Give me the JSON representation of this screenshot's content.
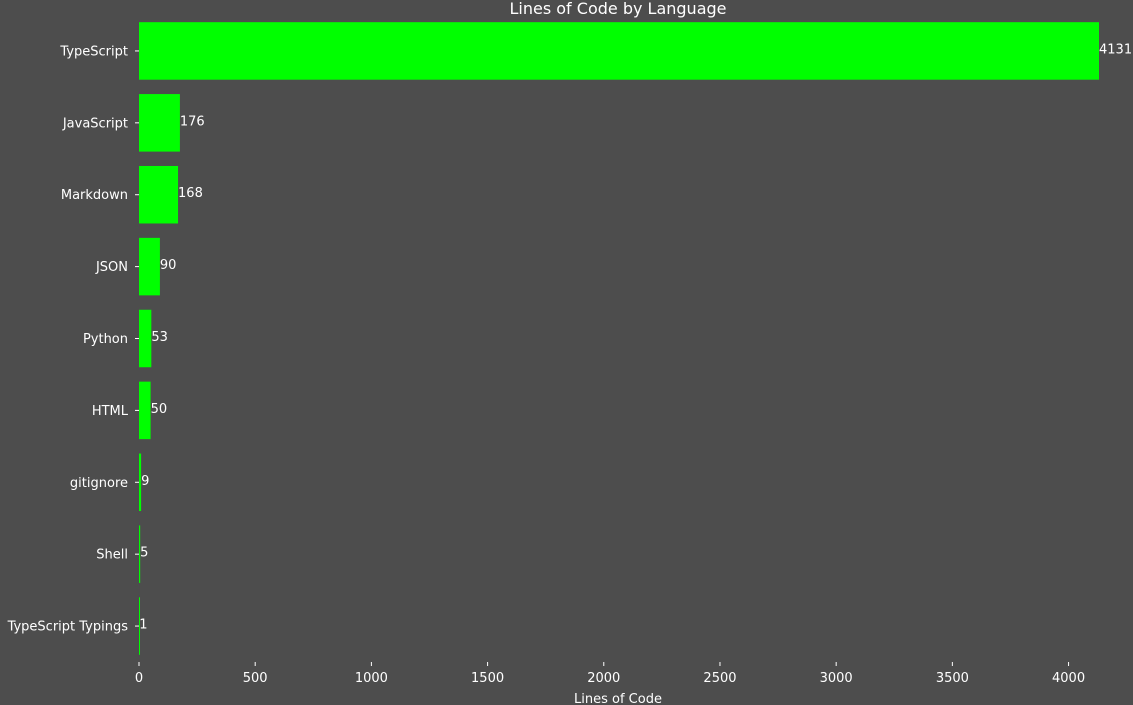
{
  "chart_data": {
    "type": "bar",
    "orientation": "horizontal",
    "title": "Lines of Code by Language",
    "xlabel": "Lines of Code",
    "ylabel": "",
    "categories": [
      "TypeScript",
      "JavaScript",
      "Markdown",
      "JSON",
      "Python",
      "HTML",
      "gitignore",
      "Shell",
      "TypeScript Typings"
    ],
    "values": [
      4131,
      176,
      168,
      90,
      53,
      50,
      9,
      5,
      1
    ],
    "data_labels": [
      "4131",
      "176",
      "168",
      "90",
      "53",
      "50",
      "9",
      "5",
      "1"
    ],
    "xticks": [
      "0",
      "500",
      "1000",
      "1500",
      "2000",
      "2500",
      "3000",
      "3500",
      "4000"
    ],
    "xlim": [
      0,
      4131
    ],
    "grid": false,
    "colors": {
      "background": "#4d4d4d",
      "bar": "#00ff00",
      "text": "#ffffff"
    }
  }
}
